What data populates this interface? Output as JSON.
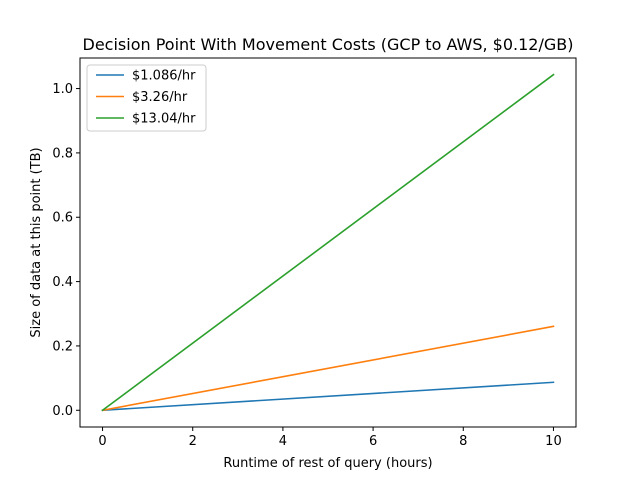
{
  "chart_data": {
    "type": "line",
    "title": "Decision Point With Movement Costs (GCP to AWS, $0.12/GB)",
    "xlabel": "Runtime of rest of query (hours)",
    "ylabel": "Size of data at this point (TB)",
    "xlim": [
      -0.5,
      10.5
    ],
    "ylim": [
      -0.052,
      1.095
    ],
    "x_ticks": [
      0,
      2,
      4,
      6,
      8,
      10
    ],
    "x_tick_labels": [
      "0",
      "2",
      "4",
      "6",
      "8",
      "10"
    ],
    "y_ticks": [
      0.0,
      0.2,
      0.4,
      0.6,
      0.8,
      1.0
    ],
    "y_tick_labels": [
      "0.0",
      "0.2",
      "0.4",
      "0.6",
      "0.8",
      "1.0"
    ],
    "grid": false,
    "legend_position": "upper-left",
    "series": [
      {
        "name": "$1.086/hr",
        "color": "#1f77b4",
        "x": [
          0,
          10
        ],
        "y": [
          0,
          0.0869
        ]
      },
      {
        "name": "$3.26/hr",
        "color": "#ff7f0e",
        "x": [
          0,
          10
        ],
        "y": [
          0,
          0.2608
        ]
      },
      {
        "name": "$13.04/hr",
        "color": "#2ca02c",
        "x": [
          0,
          10
        ],
        "y": [
          0,
          1.0432
        ]
      }
    ]
  }
}
